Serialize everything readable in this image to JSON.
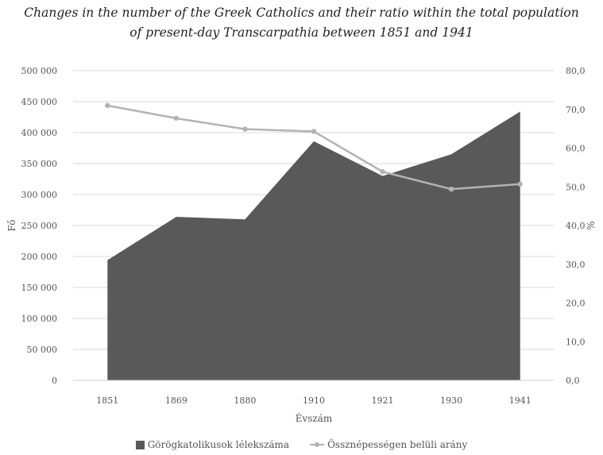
{
  "chart_data": {
    "type": "area+line",
    "title_line1": "Changes in the number of the Greek Catholics and their ratio within the total population",
    "title_line2": "of present-day Transcarpathia between 1851 and 1941",
    "xlabel": "Évszám",
    "ylabel_left": "Fő",
    "ylabel_right": "%",
    "categories": [
      "1851",
      "1869",
      "1880",
      "1910",
      "1921",
      "1930",
      "1941"
    ],
    "y_left": {
      "min": 0,
      "max": 500000,
      "ticks": [
        "0",
        "50 000",
        "100 000",
        "150 000",
        "200 000",
        "250 000",
        "300 000",
        "350 000",
        "400 000",
        "450 000",
        "500 000"
      ]
    },
    "y_right": {
      "min": 0,
      "max": 80,
      "ticks": [
        "0,0",
        "10,0",
        "20,0",
        "30,0",
        "40,0",
        "50,0",
        "60,0",
        "70,0",
        "80,0"
      ]
    },
    "series": [
      {
        "name": "Görögkatolikusok lélekszáma",
        "kind": "area",
        "axis": "left",
        "color": "#595959",
        "values": [
          194000,
          264000,
          260000,
          386000,
          330000,
          365000,
          434000
        ]
      },
      {
        "name": "Össznépességen belüli arány",
        "kind": "line",
        "axis": "right",
        "color": "#b3b3b3",
        "values": [
          71.0,
          67.7,
          64.9,
          64.3,
          53.9,
          49.4,
          50.7
        ]
      }
    ],
    "gridlines": true,
    "legend_position": "bottom"
  }
}
